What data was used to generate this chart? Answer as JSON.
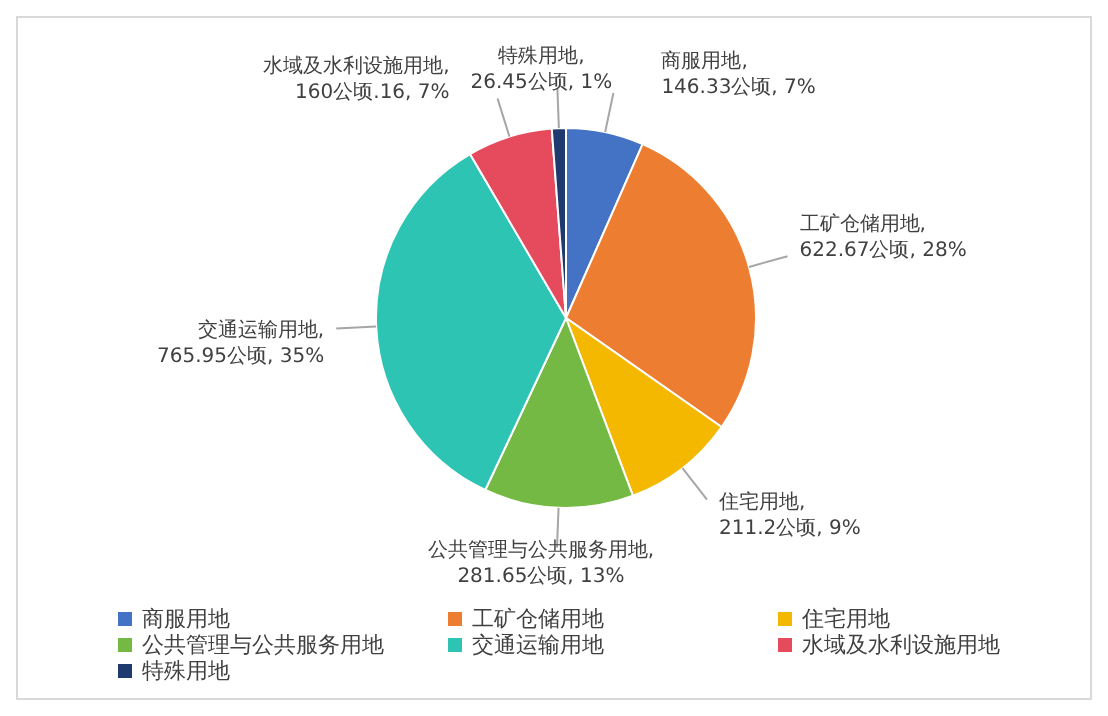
{
  "chart_data": {
    "type": "pie",
    "categories": [
      "商服用地",
      "工矿仓储用地",
      "住宅用地",
      "公共管理与公共服务用地",
      "交通运输用地",
      "水域及水利设施用地",
      "特殊用地"
    ],
    "values": [
      146.33,
      622.67,
      211.2,
      281.65,
      765.95,
      160.16,
      26.45
    ],
    "value_labels": [
      "商服用地, 146.33公顷, 7%",
      "工矿仓储用地, 622.67公顷, 28%",
      "住宅用地, 211.2公顷, 9%",
      "公共管理与公共服务用地, 281.65公顷, 13%",
      "交通运输用地, 765.95公顷, 35%",
      "水域及水利设施用地, 160公顷.16, 7%",
      "特殊用地, 26.45公顷, 1%"
    ],
    "colors": [
      "#4472c4",
      "#ed7d31",
      "#f5b800",
      "#74b944",
      "#2ec4b4",
      "#e54b5d",
      "#1f3a6e"
    ],
    "legend": "bottom"
  }
}
